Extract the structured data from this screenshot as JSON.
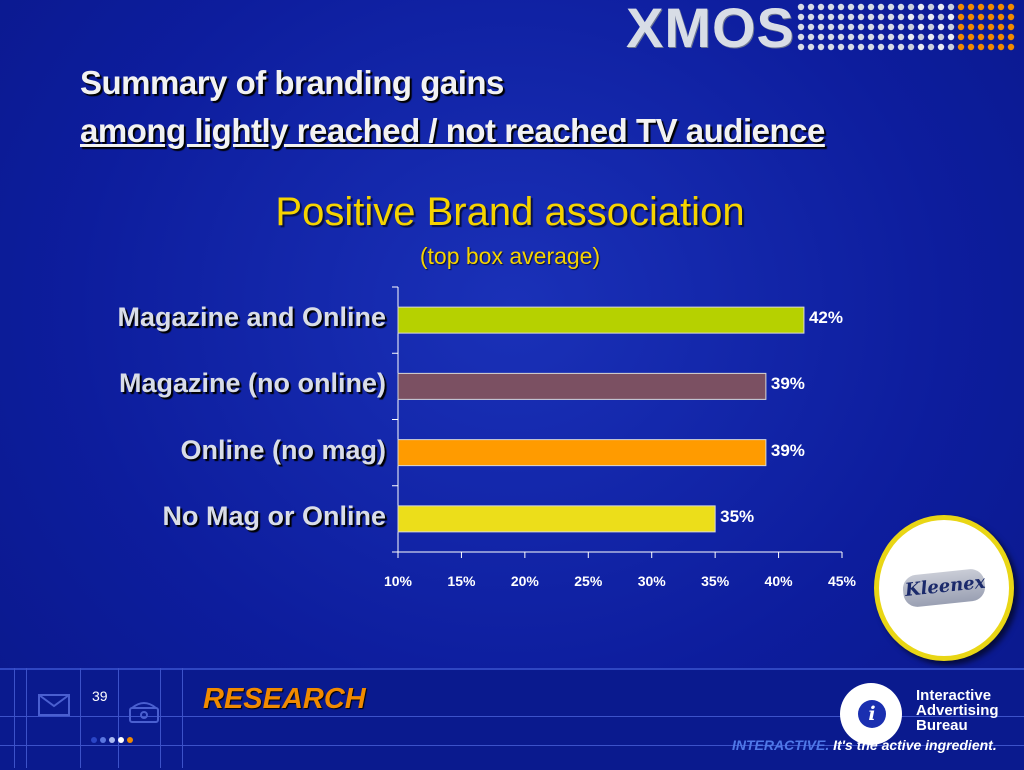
{
  "header": {
    "logo_text": "XMOS",
    "title_line1": "Summary of branding gains",
    "title_line2": "among lightly reached / not reached TV audience"
  },
  "chart_data": {
    "type": "bar",
    "orientation": "horizontal",
    "title": "Positive Brand association",
    "subtitle": "(top box average)",
    "categories": [
      "Magazine and Online",
      "Magazine (no online)",
      "Online (no mag)",
      "No Mag or Online"
    ],
    "values": [
      42,
      39,
      39,
      35
    ],
    "value_labels": [
      "42%",
      "39%",
      "39%",
      "35%"
    ],
    "bar_colors": [
      "#b6d100",
      "#7b5062",
      "#ff9b00",
      "#ecde1a"
    ],
    "xlim": [
      10,
      45
    ],
    "x_ticks": [
      10,
      15,
      20,
      25,
      30,
      35,
      40,
      45
    ],
    "x_tick_labels": [
      "10%",
      "15%",
      "20%",
      "25%",
      "30%",
      "35%",
      "40%",
      "45%"
    ],
    "grid": false,
    "legend": "none"
  },
  "badge": {
    "brand": "Kleenex"
  },
  "footer": {
    "page_number": "39",
    "section_label": "RESEARCH",
    "org_line1": "Interactive",
    "org_line2": "Advertising",
    "org_line3": "Bureau",
    "tagline_part1": "INTERACTIVE.",
    "tagline_part2": " It's the active ingredient.",
    "accent_orange": "#f08a00"
  }
}
